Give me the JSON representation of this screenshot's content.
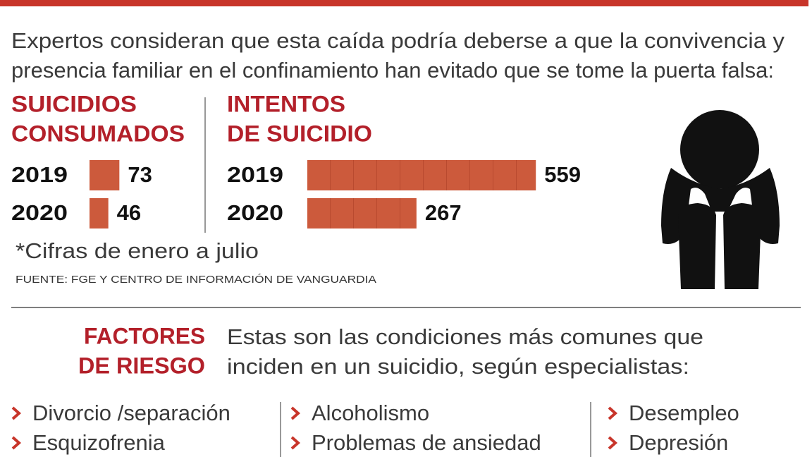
{
  "intro": [
    "Expertos consideran que esta caída podría deberse a que la convivencia y",
    "presencia familiar en el confinamiento han evitado que se tome la puerta falsa:"
  ],
  "chart_data": [
    {
      "type": "bar",
      "title": [
        "SUICIDIOS",
        "CONSUMADOS"
      ],
      "categories": [
        "2019",
        "2020"
      ],
      "values": [
        73,
        46
      ],
      "color": "#cc5a3c"
    },
    {
      "type": "bar",
      "title": [
        "INTENTOS",
        "DE SUICIDIO"
      ],
      "categories": [
        "2019",
        "2020"
      ],
      "values": [
        559,
        267
      ],
      "color": "#cc5a3c"
    }
  ],
  "note": "*Cifras de enero a julio",
  "source": "FUENTE: FGE Y CENTRO DE INFORMACIÓN DE VANGUARDIA",
  "factors": {
    "title": [
      "FACTORES",
      "DE RIESGO"
    ],
    "description": [
      "Estas son las condiciones más comunes que",
      "inciden en un suicidio, según especialistas:"
    ],
    "columns": [
      [
        "Divorcio /separación",
        "Esquizofrenia"
      ],
      [
        "Alcoholismo",
        "Problemas de ansiedad"
      ],
      [
        "Desempleo",
        "Depresión"
      ]
    ]
  }
}
